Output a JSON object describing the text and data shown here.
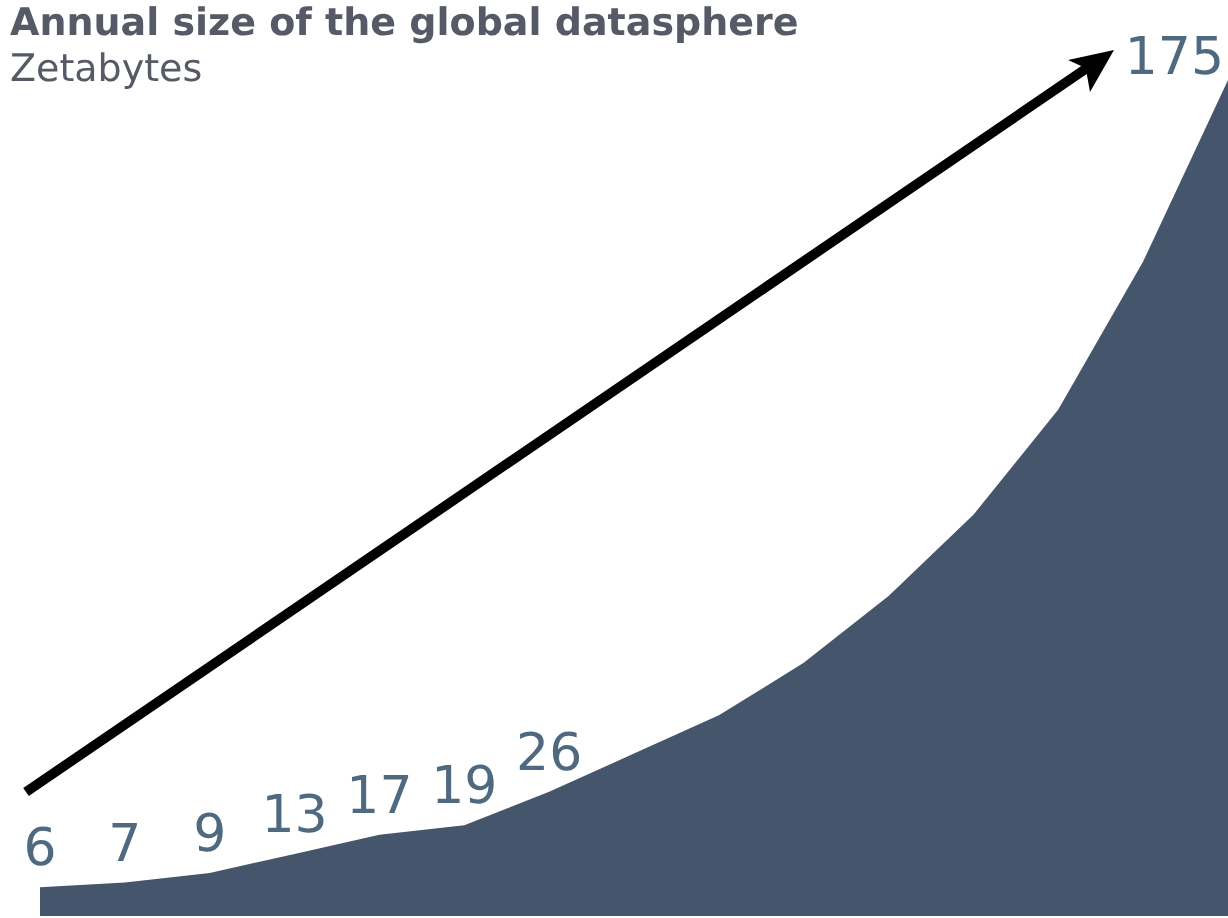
{
  "chart_data": {
    "type": "area",
    "title": "Annual size of the global datasphere",
    "subtitle": "Zetabytes",
    "categories": [
      null,
      null,
      null,
      null,
      null,
      null,
      null,
      null,
      null,
      null,
      null,
      null,
      null,
      null,
      null
    ],
    "values": [
      6,
      7,
      9,
      13,
      17,
      19,
      26,
      34,
      42,
      53,
      67,
      84,
      106,
      137,
      175
    ],
    "value_labels": [
      "6",
      "7",
      "9",
      "13",
      "17",
      "19",
      "26",
      null,
      null,
      null,
      null,
      null,
      null,
      null,
      "175"
    ],
    "color": "#45556c",
    "grid": false
  }
}
